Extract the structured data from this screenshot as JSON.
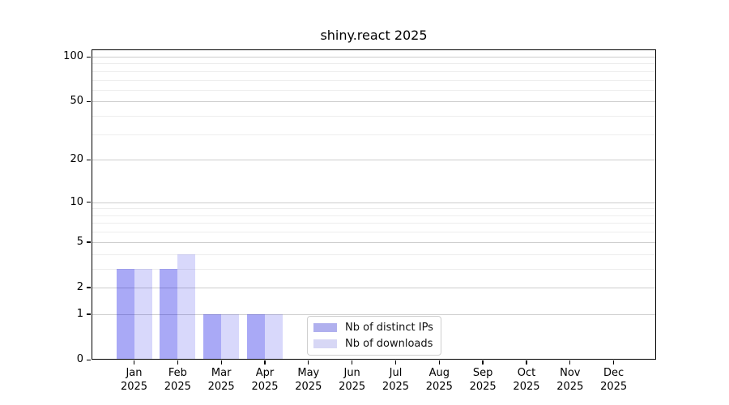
{
  "chart_data": {
    "type": "bar",
    "title": "shiny.react 2025",
    "x_categories": [
      "Jan",
      "Feb",
      "Mar",
      "Apr",
      "May",
      "Jun",
      "Jul",
      "Aug",
      "Sep",
      "Oct",
      "Nov",
      "Dec"
    ],
    "x_year_label": "2025",
    "series": [
      {
        "name": "Nb of distinct IPs",
        "color": "rgba(10,10,228,0.35)",
        "legend_swatch_color": "#b0b0ee",
        "values": [
          3,
          3,
          1,
          1,
          0,
          0,
          0,
          0,
          0,
          0,
          0,
          0
        ]
      },
      {
        "name": "Nb of downloads",
        "color": "rgba(10,10,228,0.16)",
        "legend_swatch_color": "#d7d7f5",
        "values": [
          3,
          4,
          1,
          1,
          0,
          0,
          0,
          0,
          0,
          0,
          0,
          0
        ]
      }
    ],
    "y_scale": "log1p",
    "y_ticks": [
      100,
      50,
      20,
      10,
      5,
      2,
      1,
      0
    ],
    "y_minor_gridlines": [
      3,
      4,
      6,
      7,
      8,
      9,
      30,
      40,
      60,
      70,
      80,
      90
    ],
    "ylim": [
      0,
      112
    ],
    "grid": true,
    "legend_position": "inside lower-center",
    "colors": {
      "major_grid": "#cdcdcd",
      "minor_grid": "#ededed",
      "axis": "#000000",
      "text": "#000000",
      "legend_border": "#cfcfcf",
      "background": "#ffffff"
    }
  }
}
